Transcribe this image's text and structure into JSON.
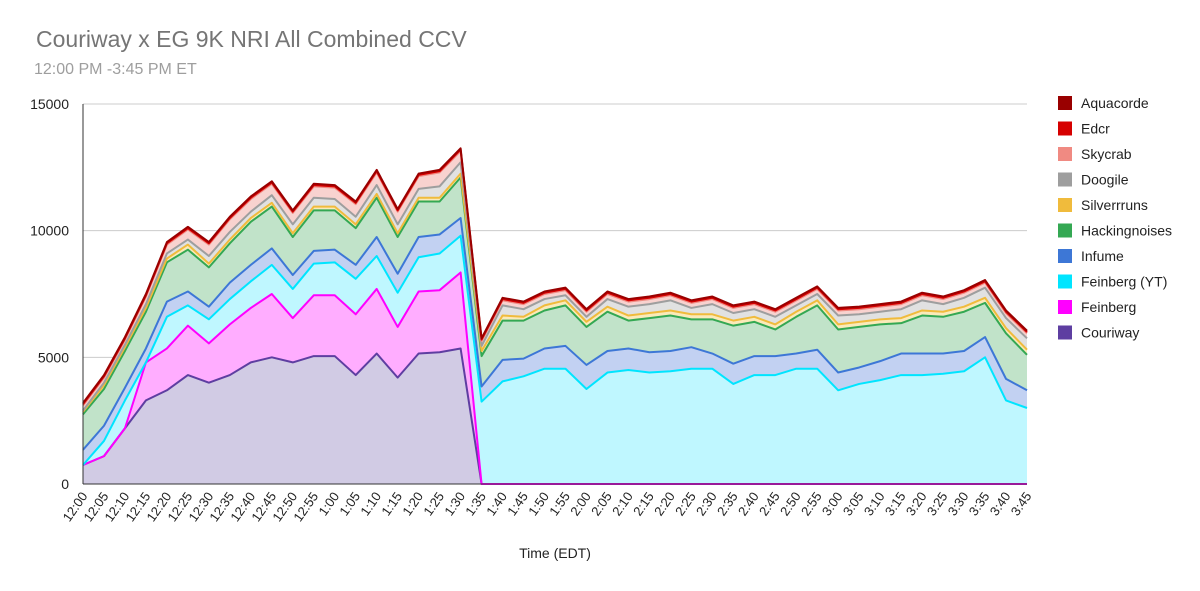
{
  "chart_data": {
    "type": "area",
    "stacked": true,
    "title": "Couriway x EG 9K NRI All Combined CCV",
    "subtitle": "12:00 PM -3:45 PM ET",
    "xlabel": "Time (EDT)",
    "ylabel": "",
    "ylim": [
      0,
      15000
    ],
    "yticks": [
      0,
      5000,
      10000,
      15000
    ],
    "grid": true,
    "legend_position": "right",
    "categories": [
      "12:00",
      "12:05",
      "12:10",
      "12:15",
      "12:20",
      "12:25",
      "12:30",
      "12:35",
      "12:40",
      "12:45",
      "12:50",
      "12:55",
      "1:00",
      "1:05",
      "1:10",
      "1:15",
      "1:20",
      "1:25",
      "1:30",
      "1:35",
      "1:40",
      "1:45",
      "1:50",
      "1:55",
      "2:00",
      "2:05",
      "2:10",
      "2:15",
      "2:20",
      "2:25",
      "2:30",
      "2:35",
      "2:40",
      "2:45",
      "2:50",
      "2:55",
      "3:00",
      "3:05",
      "3:10",
      "3:15",
      "3:20",
      "3:25",
      "3:30",
      "3:35",
      "3:40",
      "3:45"
    ],
    "series": [
      {
        "name": "Couriway",
        "color": "#5e3ea1",
        "fill": "#d1cbe4",
        "values": [
          750,
          1100,
          2200,
          3300,
          3700,
          4300,
          4000,
          4300,
          4800,
          5000,
          4800,
          5050,
          5050,
          4300,
          5150,
          4200,
          5150,
          5200,
          5350,
          0,
          0,
          0,
          0,
          0,
          0,
          0,
          0,
          0,
          0,
          0,
          0,
          0,
          0,
          0,
          0,
          0,
          0,
          0,
          0,
          0,
          0,
          0,
          0,
          0,
          0,
          0
        ]
      },
      {
        "name": "Feinberg",
        "color": "#ff00ff",
        "fill": "#ffadff",
        "values": [
          0,
          0,
          0,
          1500,
          1650,
          1950,
          1550,
          2000,
          2150,
          2500,
          1750,
          2400,
          2400,
          2400,
          2550,
          2000,
          2450,
          2450,
          3000,
          0,
          0,
          0,
          0,
          0,
          0,
          0,
          0,
          0,
          0,
          0,
          0,
          0,
          0,
          0,
          0,
          0,
          0,
          0,
          0,
          0,
          0,
          0,
          0,
          0,
          0,
          0
        ]
      },
      {
        "name": "Feinberg (YT)",
        "color": "#00e5ff",
        "fill": "#bff7ff",
        "values": [
          0,
          600,
          1100,
          0,
          1250,
          800,
          950,
          1000,
          1050,
          1150,
          1150,
          1250,
          1300,
          1400,
          1300,
          1350,
          1350,
          1450,
          1450,
          3250,
          4050,
          4250,
          4550,
          4550,
          3750,
          4400,
          4500,
          4400,
          4450,
          4550,
          4550,
          3950,
          4300,
          4300,
          4550,
          4550,
          3700,
          3950,
          4100,
          4300,
          4300,
          4350,
          4450,
          5000,
          3300,
          3000
        ]
      },
      {
        "name": "Infume",
        "color": "#3d77d6",
        "fill": "#c2d1f2",
        "values": [
          600,
          600,
          500,
          550,
          600,
          550,
          500,
          650,
          650,
          650,
          550,
          500,
          500,
          550,
          750,
          750,
          800,
          750,
          700,
          600,
          850,
          700,
          800,
          900,
          950,
          850,
          850,
          800,
          800,
          850,
          600,
          800,
          750,
          750,
          600,
          750,
          700,
          650,
          750,
          850,
          850,
          800,
          800,
          800,
          850,
          700
        ]
      },
      {
        "name": "Hackingnoises",
        "color": "#34a853",
        "fill": "#c1e3c9",
        "values": [
          1400,
          1450,
          1450,
          1450,
          1550,
          1650,
          1550,
          1550,
          1700,
          1650,
          1500,
          1600,
          1550,
          1450,
          1550,
          1450,
          1400,
          1300,
          1600,
          1200,
          1550,
          1500,
          1500,
          1600,
          1500,
          1550,
          1100,
          1350,
          1400,
          1100,
          1350,
          1500,
          1350,
          1050,
          1450,
          1750,
          1700,
          1600,
          1450,
          1200,
          1500,
          1450,
          1550,
          1350,
          1800,
          1400
        ]
      },
      {
        "name": "Silverrruns",
        "color": "#f0bb3c",
        "fill": "#faeaba",
        "values": [
          100,
          150,
          150,
          150,
          150,
          200,
          150,
          150,
          150,
          150,
          150,
          150,
          150,
          150,
          150,
          150,
          150,
          150,
          150,
          200,
          200,
          150,
          200,
          200,
          200,
          200,
          200,
          200,
          200,
          200,
          200,
          200,
          200,
          200,
          200,
          200,
          200,
          200,
          200,
          200,
          200,
          200,
          200,
          200,
          200,
          200
        ]
      },
      {
        "name": "Doogile",
        "color": "#9e9e9e",
        "fill": "#e1e1e1",
        "values": [
          50,
          100,
          100,
          150,
          200,
          200,
          300,
          300,
          250,
          300,
          350,
          350,
          300,
          300,
          350,
          350,
          350,
          450,
          450,
          200,
          400,
          300,
          250,
          200,
          200,
          300,
          350,
          350,
          400,
          250,
          400,
          300,
          300,
          300,
          250,
          250,
          350,
          300,
          300,
          350,
          400,
          300,
          350,
          400,
          400,
          450
        ]
      },
      {
        "name": "Skycrab",
        "color": "#f08a82",
        "fill": "#f8d2cf",
        "values": [
          200,
          200,
          200,
          300,
          350,
          400,
          450,
          500,
          500,
          450,
          450,
          450,
          450,
          500,
          500,
          500,
          500,
          550,
          450,
          200,
          200,
          200,
          200,
          200,
          200,
          200,
          200,
          200,
          200,
          200,
          200,
          200,
          200,
          200,
          200,
          200,
          200,
          200,
          200,
          200,
          200,
          200,
          200,
          200,
          200,
          200
        ]
      },
      {
        "name": "Edcr",
        "color": "#d60000",
        "fill": "#f3b8b8",
        "values": [
          50,
          50,
          50,
          50,
          50,
          50,
          50,
          50,
          50,
          50,
          50,
          50,
          50,
          50,
          50,
          50,
          50,
          50,
          50,
          50,
          50,
          50,
          50,
          50,
          50,
          50,
          50,
          50,
          50,
          50,
          50,
          50,
          50,
          50,
          50,
          50,
          50,
          50,
          50,
          50,
          50,
          50,
          50,
          50,
          50,
          50
        ]
      },
      {
        "name": "Aquacorde",
        "color": "#990000",
        "fill": "#e5b3b3",
        "values": [
          50,
          50,
          50,
          50,
          50,
          50,
          50,
          50,
          50,
          50,
          50,
          50,
          50,
          50,
          50,
          50,
          50,
          50,
          50,
          50,
          50,
          50,
          50,
          50,
          50,
          50,
          50,
          50,
          50,
          50,
          50,
          50,
          50,
          50,
          50,
          50,
          50,
          50,
          50,
          50,
          50,
          50,
          50,
          50,
          50,
          50
        ]
      }
    ]
  }
}
